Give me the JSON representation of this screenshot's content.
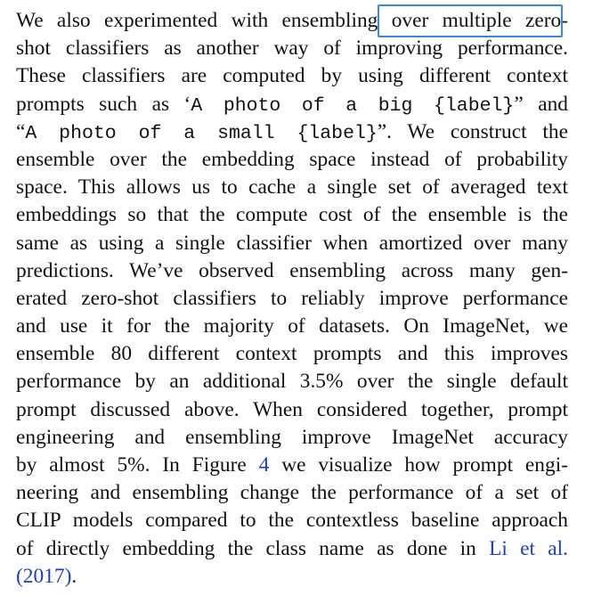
{
  "highlight_color": "#3a86e0",
  "link_color": "#1f3fbf",
  "lines": [
    [
      "We also experimented with ensembling ",
      "over multiple zero-"
    ],
    [
      "shot classifiers as another way of improving performance."
    ],
    [
      "These classifiers are computed by using different context"
    ],
    [
      "prompts such as ‘",
      "A photo of a big {label}",
      "” and"
    ],
    [
      "“",
      "A photo of a small {label}",
      "”. We construct the"
    ],
    [
      "ensemble over the embedding space instead of probability"
    ],
    [
      "space. This allows us to cache a single set of averaged text"
    ],
    [
      "embeddings so that the compute cost of the ensemble is the"
    ],
    [
      "same as using a single classifier when amortized over many"
    ],
    [
      "predictions. We’ve observed ensembling across many gen-"
    ],
    [
      "erated zero-shot classifiers to reliably improve performance"
    ],
    [
      "and use it for the majority of datasets. On ImageNet, we"
    ],
    [
      "ensemble 80 different context prompts and this improves"
    ],
    [
      "performance by an additional 3.5% over the single default"
    ],
    [
      "prompt discussed above. When considered together, prompt"
    ],
    [
      "engineering and ensembling improve ImageNet accuracy"
    ],
    [
      "by almost 5%. In Figure ",
      "4",
      " we visualize how prompt engi-"
    ],
    [
      "neering and ensembling change the performance of a set of"
    ],
    [
      "CLIP models compared to the contextless baseline approach"
    ],
    [
      "of directly embedding the class name as done in ",
      "Li et al."
    ],
    [
      "(2017)",
      "."
    ]
  ]
}
